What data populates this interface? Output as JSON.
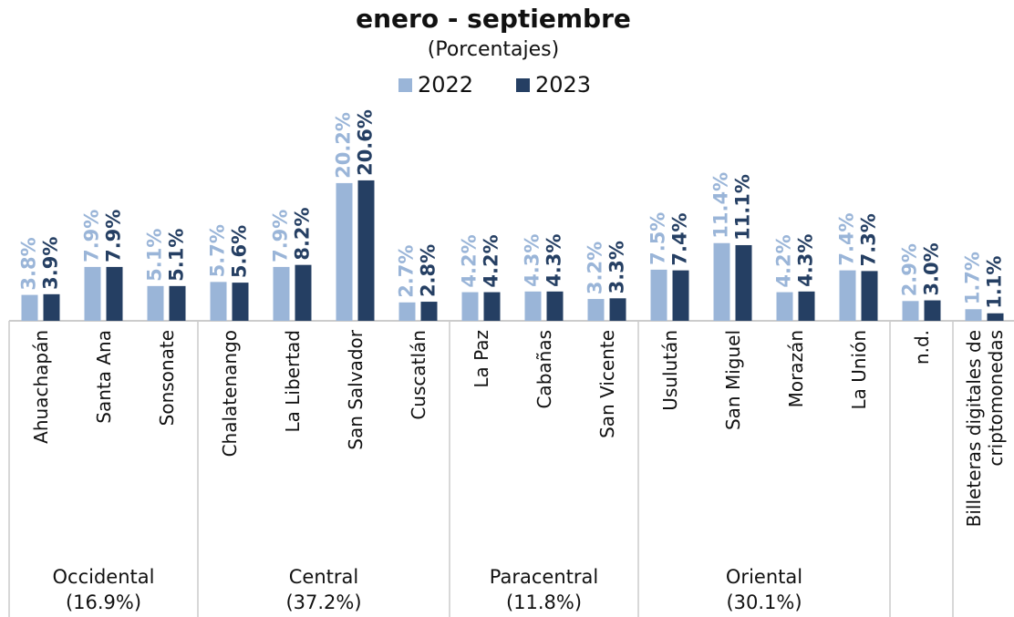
{
  "chart_data": {
    "type": "bar",
    "title": "enero - septiembre",
    "subtitle": "(Porcentajes)",
    "categories": [
      "Ahuachapán",
      "Santa Ana",
      "Sonsonate",
      "Chalatenango",
      "La Libertad",
      "San Salvador",
      "Cuscatlán",
      "La Paz",
      "Cabañas",
      "San Vicente",
      "Usulután",
      "San Miguel",
      "Morazán",
      "La Unión",
      "n.d.",
      "Billeteras digitales de criptomonedas"
    ],
    "series": [
      {
        "name": "2022",
        "color": "#9ab5d8",
        "values": [
          3.8,
          7.9,
          5.1,
          5.7,
          7.9,
          20.2,
          2.7,
          4.2,
          4.3,
          3.2,
          7.5,
          11.4,
          4.2,
          7.4,
          2.9,
          1.7
        ],
        "value_labels": [
          "3.8%",
          "7.9%",
          "5.1%",
          "5.7%",
          "7.9%",
          "20.2%",
          "2.7%",
          "4.2%",
          "4.3%",
          "3.2%",
          "7.5%",
          "11.4%",
          "4.2%",
          "7.4%",
          "2.9%",
          "1.7%"
        ]
      },
      {
        "name": "2023",
        "color": "#253f63",
        "values": [
          3.9,
          7.9,
          5.1,
          5.6,
          8.2,
          20.6,
          2.8,
          4.2,
          4.3,
          3.3,
          7.4,
          11.1,
          4.3,
          7.3,
          3.0,
          1.1
        ],
        "value_labels": [
          "3.9%",
          "7.9%",
          "5.1%",
          "5.6%",
          "8.2%",
          "20.6%",
          "2.8%",
          "4.2%",
          "4.3%",
          "3.3%",
          "7.4%",
          "11.1%",
          "4.3%",
          "7.3%",
          "3.0%",
          "1.1%"
        ]
      }
    ],
    "groups": [
      {
        "name": "Occidental",
        "label": "(16.9%)"
      },
      {
        "name": "Central",
        "label": "(37.2%)"
      },
      {
        "name": "Paracentral",
        "label": "(11.8%)"
      },
      {
        "name": "Oriental",
        "label": "(30.1%)"
      }
    ]
  }
}
